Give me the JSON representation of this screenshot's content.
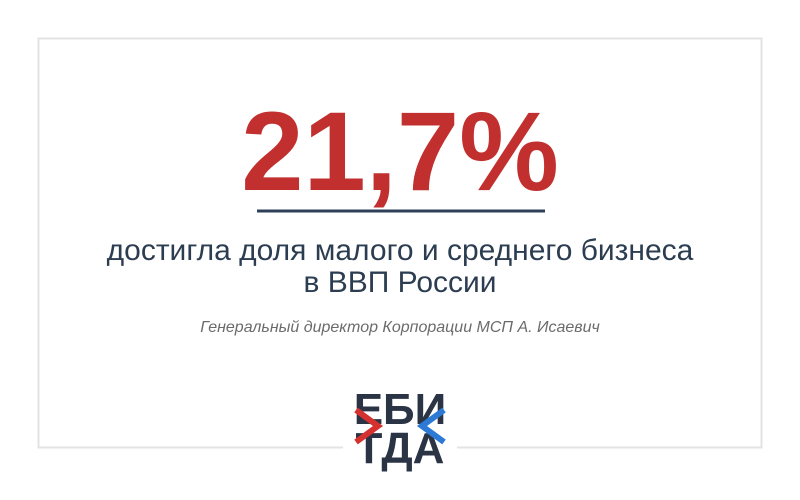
{
  "headline": {
    "value_text": "21,7%",
    "lines": [
      "достигла доля малого и среднего бизнеса",
      "в ВВП России"
    ]
  },
  "attribution": "Генеральный директор Корпорации МСП А. Исаевич",
  "logo": {
    "top": "ЕБИ",
    "bottom": "ТДА"
  }
}
